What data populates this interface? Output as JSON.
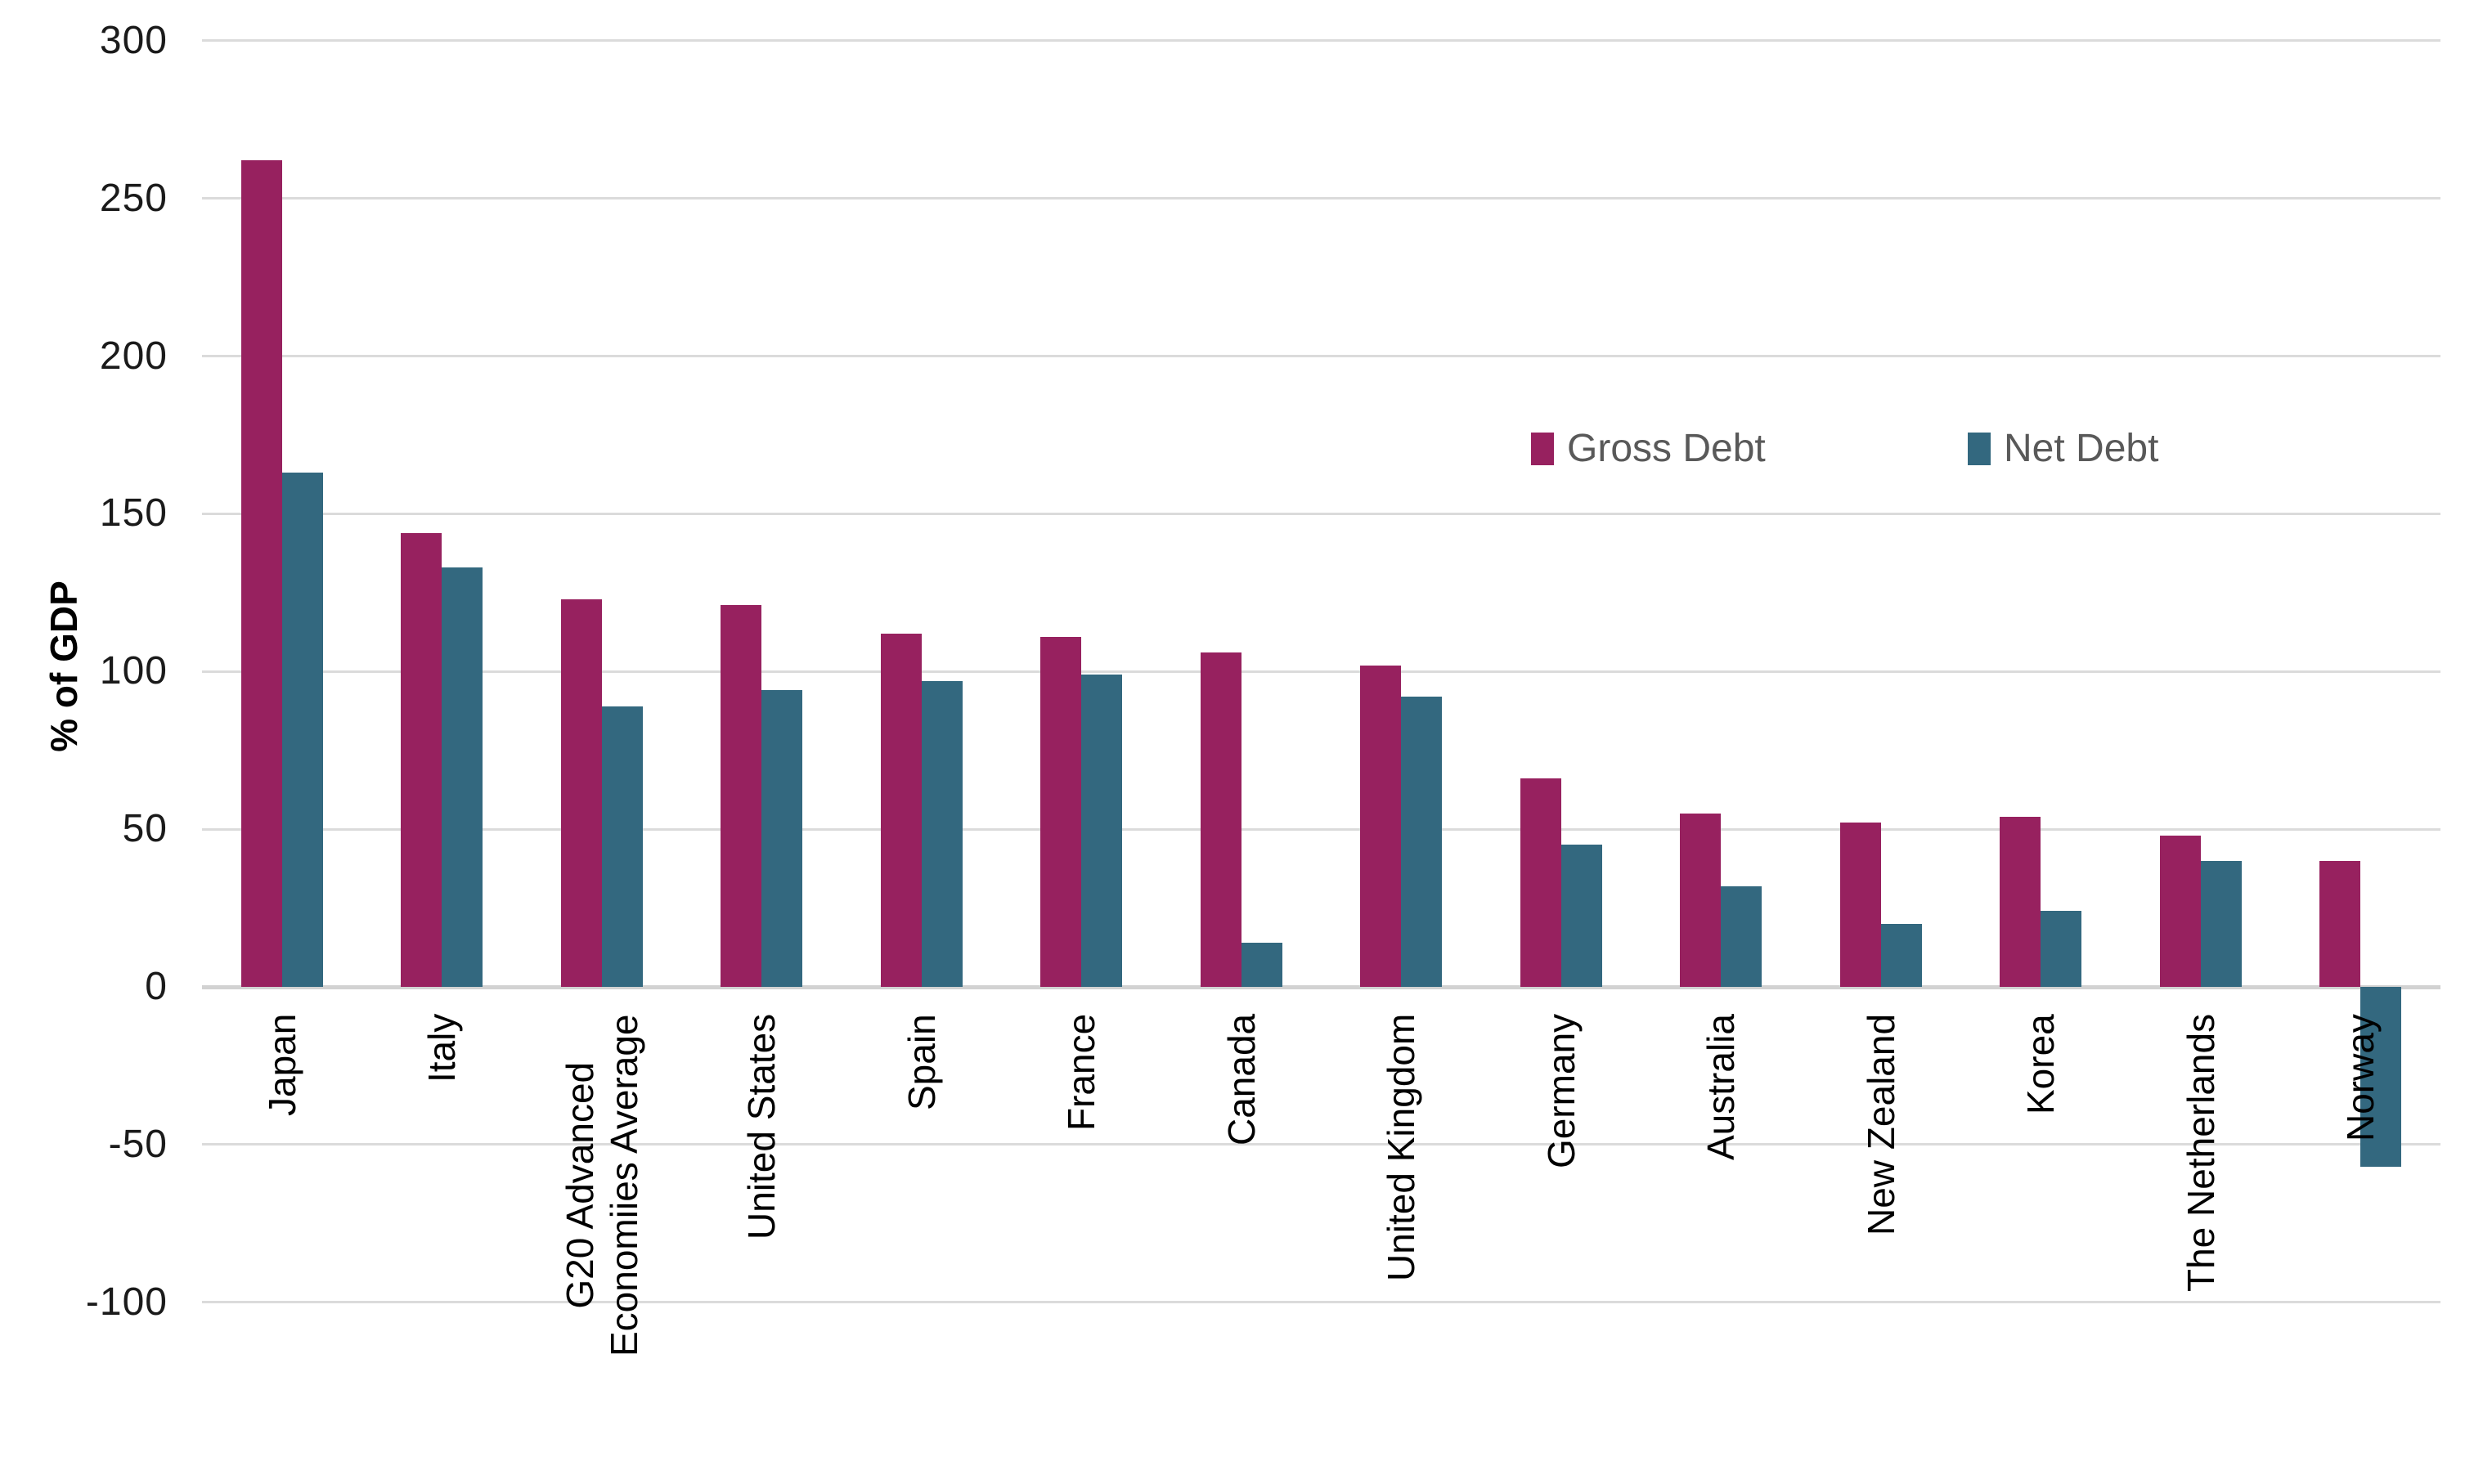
{
  "chart_data": {
    "type": "bar",
    "title": "",
    "xlabel": "",
    "ylabel": "% of GDP",
    "ylim": [
      -100,
      300
    ],
    "ytick_step": 50,
    "yticks": [
      300,
      250,
      200,
      150,
      100,
      50,
      0,
      -50,
      -100
    ],
    "grid": true,
    "legend_position": "inside-top-right",
    "categories": [
      "Japan",
      "Italy",
      "G20 Advanced\nEconomiies Average",
      "United States",
      "Spain",
      "France",
      "Canada",
      "United Kingdom",
      "Germany",
      "Australia",
      "New Zealand",
      "Korea",
      "The Netherlands",
      "Norway"
    ],
    "series": [
      {
        "name": "Gross Debt",
        "color": "#97215F",
        "values": [
          262,
          144,
          123,
          121,
          112,
          111,
          106,
          102,
          66,
          55,
          52,
          54,
          48,
          40
        ]
      },
      {
        "name": "Net Debt",
        "color": "#33687F",
        "values": [
          163,
          133,
          89,
          94,
          97,
          99,
          14,
          92,
          45,
          32,
          20,
          24,
          40,
          -57
        ]
      }
    ]
  },
  "colors": {
    "background": "#FFFFFF",
    "gridline": "#DBDBDB",
    "zero_axis_line": "#D2D2D2",
    "tick_label": "#1A1A1A",
    "x_label": "#000000",
    "legend_text": "#595959",
    "gross_debt": "#97215F",
    "net_debt": "#33687F"
  }
}
